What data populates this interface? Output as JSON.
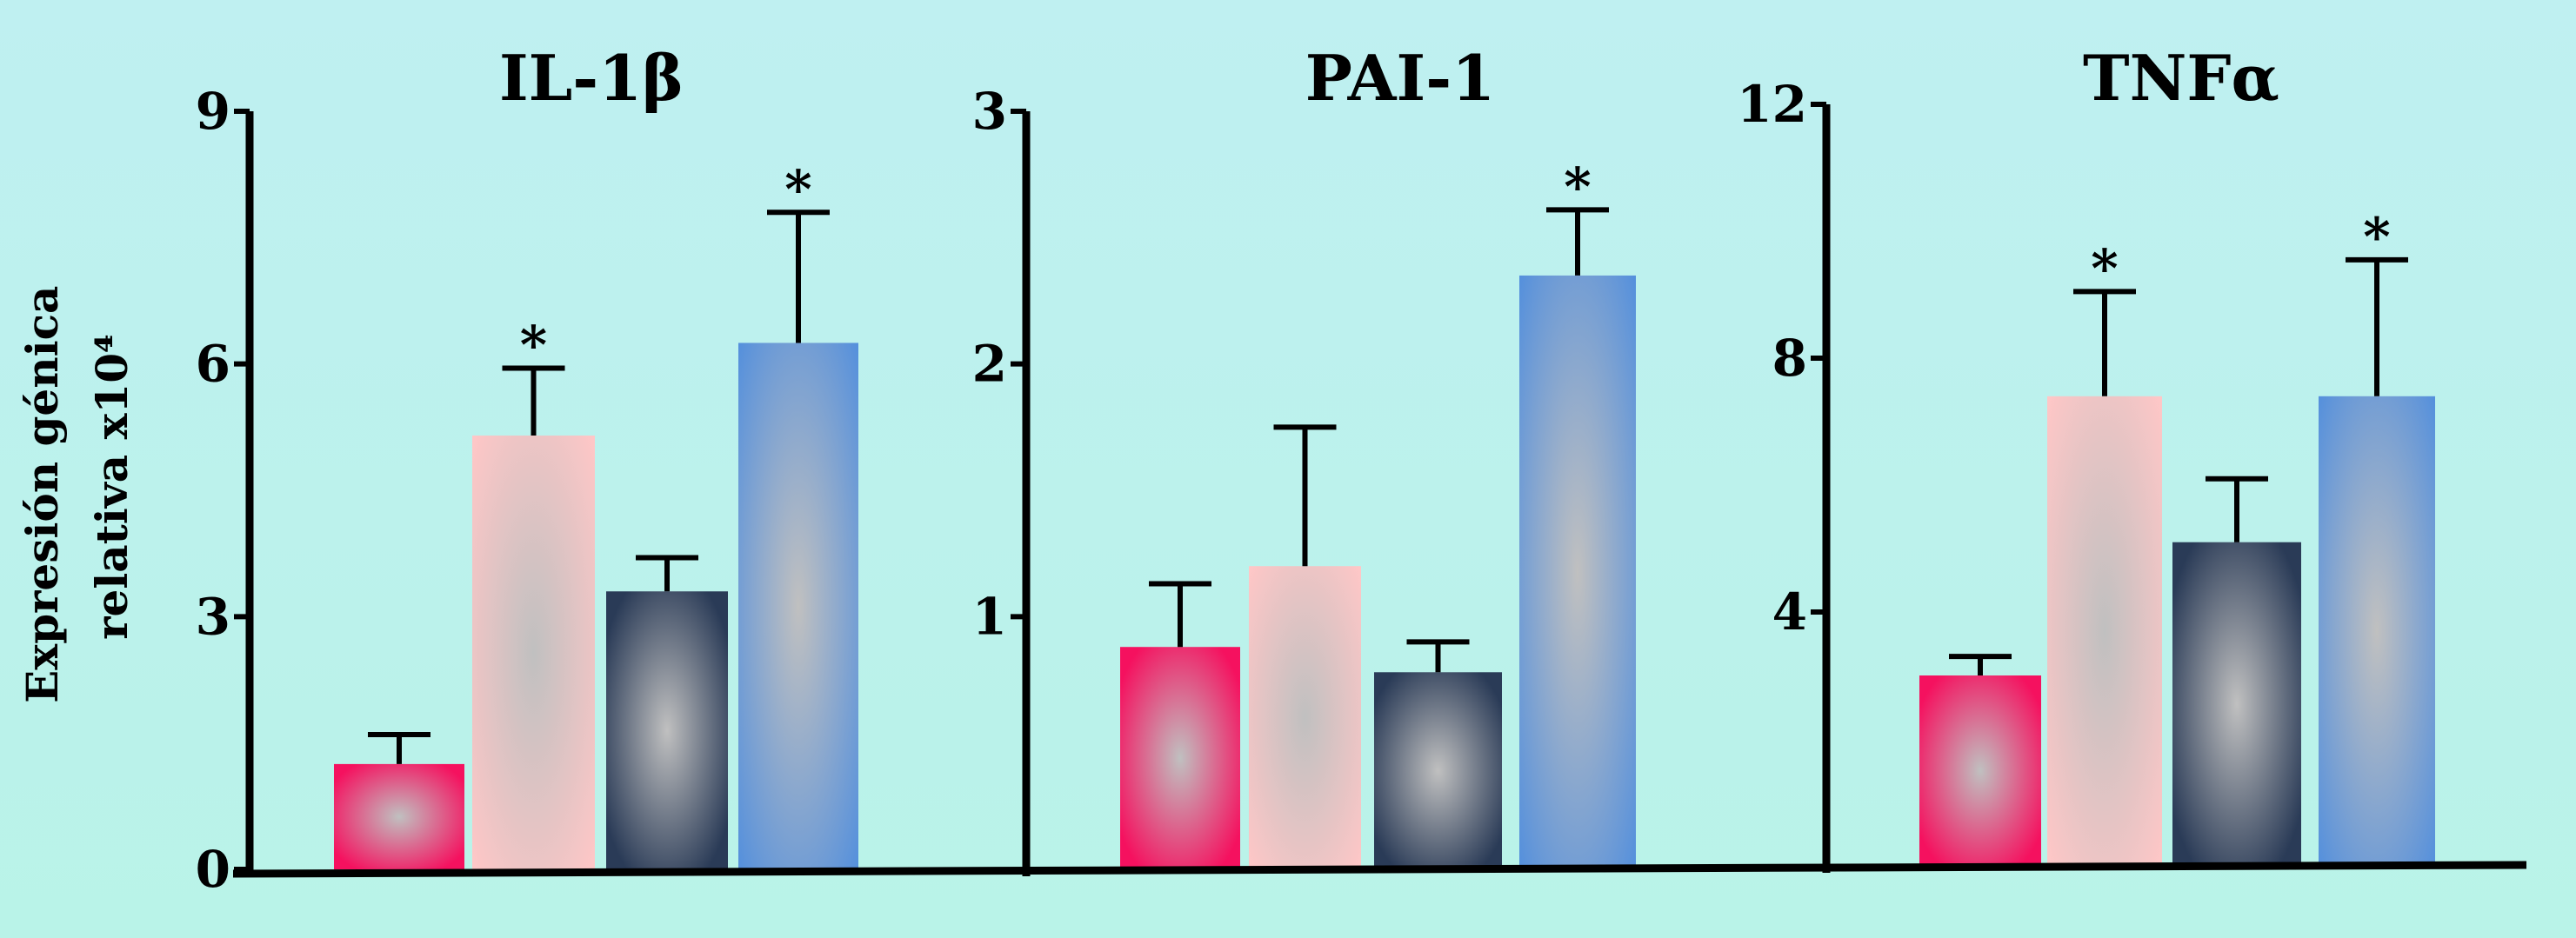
{
  "y_axis_label_line1": "Expresión génica",
  "y_axis_label_line2": "relativa x10⁴",
  "colors": {
    "bar1": "#f5115f",
    "bar2": "#ffc7c7",
    "bar3": "#2a3b57",
    "bar4": "#5590dc",
    "highlight": "#c0c0c0"
  },
  "chart_data": [
    {
      "type": "bar",
      "title": "IL-1β",
      "ylim": [
        0,
        9
      ],
      "yticks": [
        "0",
        "3",
        "6",
        "9"
      ],
      "values": [
        1.25,
        5.15,
        3.3,
        6.25
      ],
      "errors": [
        0.35,
        0.8,
        0.4,
        1.55
      ],
      "significant": [
        false,
        true,
        false,
        true
      ]
    },
    {
      "type": "bar",
      "title": "PAI-1",
      "ylim": [
        0,
        3
      ],
      "yticks": [
        "1",
        "2",
        "3"
      ],
      "values": [
        0.88,
        1.2,
        0.78,
        2.35
      ],
      "errors": [
        0.25,
        0.55,
        0.12,
        0.26
      ],
      "significant": [
        false,
        false,
        false,
        true
      ]
    },
    {
      "type": "bar",
      "title": "TNFα",
      "ylim": [
        0,
        12
      ],
      "yticks": [
        "4",
        "8",
        "12"
      ],
      "values": [
        3.0,
        7.4,
        5.1,
        7.4
      ],
      "errors": [
        0.3,
        1.65,
        1.0,
        2.15
      ],
      "significant": [
        false,
        true,
        false,
        true
      ]
    }
  ],
  "significance_marker": "*"
}
